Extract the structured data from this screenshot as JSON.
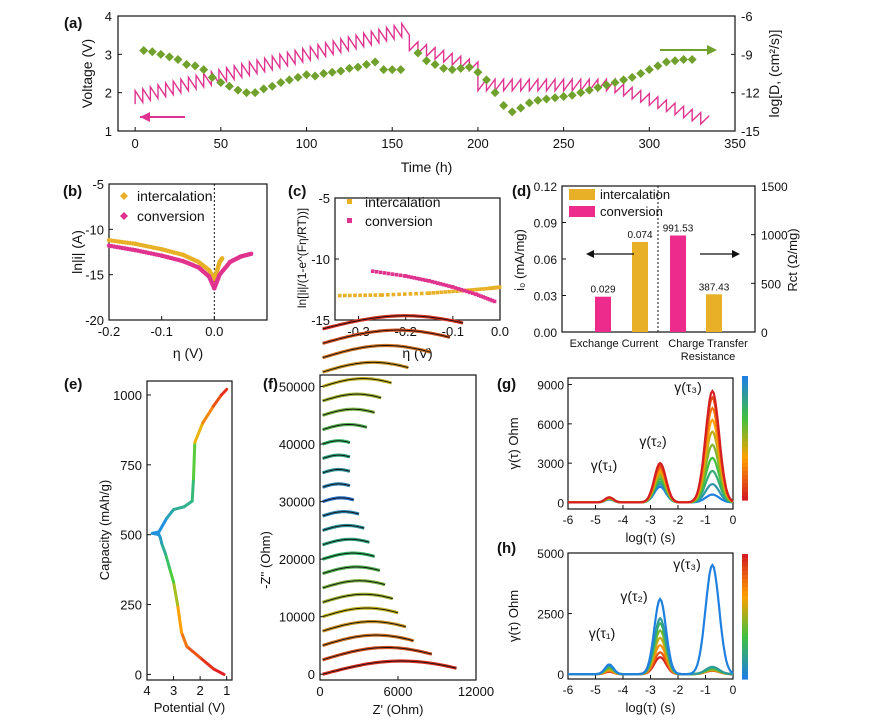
{
  "panel_labels": {
    "a": "(a)",
    "b": "(b)",
    "c": "(c)",
    "d": "(d)",
    "e": "(e)",
    "f": "(f)",
    "g": "(g)",
    "h": "(h)"
  },
  "colors": {
    "magenta": "#e0338f",
    "green": "#6fa12c",
    "gold": "#e7b026",
    "pink": "#ec2b8c"
  },
  "chart_data": [
    {
      "id": "a",
      "type": "line",
      "xlabel": "Time (h)",
      "ylabel": "Voltage (V)",
      "y2label": "log[D, (cm²/s)]",
      "xlim": [
        -10,
        350
      ],
      "ylim": [
        1,
        4
      ],
      "y2lim": [
        -15,
        -6
      ],
      "xticks": [
        0,
        50,
        100,
        150,
        200,
        250,
        300,
        350
      ],
      "yticks": [
        1,
        2,
        3,
        4
      ],
      "y2ticks": [
        -15,
        -12,
        -9,
        -6
      ],
      "series": [
        {
          "axis": "left",
          "color": "#e0338f",
          "description": "GITT voltage pulses",
          "segments": [
            {
              "x0": 0,
              "x1": 160,
              "y0": 1.7,
              "y1": 3.5,
              "pulse": 0.35,
              "n": 36
            },
            {
              "x0": 160,
              "x1": 200,
              "y0": 3.4,
              "y1": 2.8,
              "pulse": -0.3,
              "n": 8
            },
            {
              "x0": 200,
              "x1": 280,
              "y0": 2.35,
              "y1": 2.35,
              "pulse": -0.3,
              "n": 16
            },
            {
              "x0": 280,
              "x1": 335,
              "y0": 2.3,
              "y1": 1.4,
              "pulse": -0.3,
              "n": 11
            }
          ]
        },
        {
          "axis": "right",
          "color": "#6fa12c",
          "points": [
            [
              5,
              -8.7
            ],
            [
              10,
              -8.8
            ],
            [
              15,
              -9.0
            ],
            [
              20,
              -9.2
            ],
            [
              25,
              -9.4
            ],
            [
              30,
              -9.8
            ],
            [
              35,
              -9.9
            ],
            [
              40,
              -10.2
            ],
            [
              45,
              -10.8
            ],
            [
              50,
              -11.2
            ],
            [
              55,
              -11.5
            ],
            [
              60,
              -11.8
            ],
            [
              65,
              -12.0
            ],
            [
              70,
              -12.0
            ],
            [
              75,
              -11.7
            ],
            [
              80,
              -11.5
            ],
            [
              85,
              -11.2
            ],
            [
              90,
              -11.0
            ],
            [
              95,
              -10.8
            ],
            [
              100,
              -10.6
            ],
            [
              105,
              -10.7
            ],
            [
              110,
              -10.5
            ],
            [
              115,
              -10.4
            ],
            [
              120,
              -10.3
            ],
            [
              125,
              -10.1
            ],
            [
              130,
              -10.0
            ],
            [
              135,
              -9.8
            ],
            [
              140,
              -9.6
            ],
            [
              145,
              -10.2
            ],
            [
              150,
              -10.2
            ],
            [
              155,
              -10.2
            ],
            [
              165,
              -8.9
            ],
            [
              170,
              -9.5
            ],
            [
              175,
              -9.8
            ],
            [
              180,
              -10.1
            ],
            [
              185,
              -10.2
            ],
            [
              190,
              -10.1
            ],
            [
              195,
              -10.0
            ],
            [
              200,
              -10.4
            ],
            [
              205,
              -11.0
            ],
            [
              210,
              -12.0
            ],
            [
              215,
              -13.0
            ],
            [
              220,
              -13.5
            ],
            [
              225,
              -13.2
            ],
            [
              230,
              -12.8
            ],
            [
              235,
              -12.6
            ],
            [
              240,
              -12.5
            ],
            [
              245,
              -12.4
            ],
            [
              250,
              -12.3
            ],
            [
              255,
              -12.2
            ],
            [
              260,
              -12.0
            ],
            [
              265,
              -11.8
            ],
            [
              270,
              -11.6
            ],
            [
              275,
              -11.4
            ],
            [
              280,
              -11.2
            ],
            [
              285,
              -11.0
            ],
            [
              290,
              -10.8
            ],
            [
              295,
              -10.5
            ],
            [
              300,
              -10.2
            ],
            [
              305,
              -9.9
            ],
            [
              310,
              -9.6
            ],
            [
              315,
              -9.5
            ],
            [
              320,
              -9.4
            ],
            [
              325,
              -9.4
            ]
          ]
        }
      ]
    },
    {
      "id": "b",
      "type": "scatter",
      "xlabel": "η (V)",
      "ylabel": "ln|i| (A)",
      "xlim": [
        -0.2,
        0.1
      ],
      "ylim": [
        -20,
        -5
      ],
      "xticks": [
        -0.2,
        -0.1,
        0.0
      ],
      "yticks": [
        -20,
        -15,
        -10,
        -5
      ],
      "series": [
        {
          "name": "intercalation",
          "color": "#e7b026",
          "points": [
            [
              -0.2,
              -11.2
            ],
            [
              -0.15,
              -11.6
            ],
            [
              -0.1,
              -12.2
            ],
            [
              -0.06,
              -12.8
            ],
            [
              -0.03,
              -13.6
            ],
            [
              -0.01,
              -14.5
            ],
            [
              0,
              -15.5
            ],
            [
              0.005,
              -14.6
            ],
            [
              0.01,
              -13.6
            ],
            [
              0.015,
              -13.2
            ]
          ]
        },
        {
          "name": "conversion",
          "color": "#e0338f",
          "points": [
            [
              -0.2,
              -11.8
            ],
            [
              -0.15,
              -12.3
            ],
            [
              -0.1,
              -12.9
            ],
            [
              -0.06,
              -13.5
            ],
            [
              -0.03,
              -14.2
            ],
            [
              -0.01,
              -15.2
            ],
            [
              0,
              -16.5
            ],
            [
              0.01,
              -15.0
            ],
            [
              0.03,
              -13.6
            ],
            [
              0.05,
              -13.0
            ],
            [
              0.07,
              -12.7
            ]
          ]
        }
      ]
    },
    {
      "id": "c",
      "type": "scatter",
      "xlabel": "η (V)",
      "ylabel": "ln[|i|/(1-e^(Fη/RT))]",
      "xlim": [
        -0.35,
        0.0
      ],
      "ylim": [
        -15,
        -5
      ],
      "xticks": [
        -0.3,
        -0.2,
        -0.1,
        0.0
      ],
      "yticks": [
        -15,
        -10,
        -5
      ],
      "series": [
        {
          "name": "intercalation",
          "color": "#e7b026",
          "points": [
            [
              -0.34,
              -13.0
            ],
            [
              -0.25,
              -12.95
            ],
            [
              -0.15,
              -12.8
            ],
            [
              -0.08,
              -12.6
            ],
            [
              -0.02,
              -12.4
            ],
            [
              0.0,
              -12.3
            ]
          ]
        },
        {
          "name": "conversion",
          "color": "#e0338f",
          "points": [
            [
              -0.27,
              -11.0
            ],
            [
              -0.2,
              -11.4
            ],
            [
              -0.15,
              -11.8
            ],
            [
              -0.1,
              -12.3
            ],
            [
              -0.05,
              -12.9
            ],
            [
              -0.01,
              -13.5
            ]
          ]
        }
      ]
    },
    {
      "id": "d",
      "type": "bar",
      "ylabel": "i₀ (mA/mg)",
      "y2label": "Rct (Ω/mg)",
      "ylim": [
        0,
        0.12
      ],
      "y2lim": [
        0,
        1500
      ],
      "yticks": [
        0,
        0.03,
        0.06,
        0.09,
        0.12
      ],
      "y2ticks": [
        0,
        500,
        1000,
        1500
      ],
      "categories": [
        "Exchange Current",
        "Charge Transfer Resistance"
      ],
      "series": [
        {
          "name": "intercalation",
          "color": "#e7b026"
        },
        {
          "name": "conversion",
          "color": "#ec2b8c"
        }
      ],
      "bars": [
        {
          "group": 0,
          "series": "conversion",
          "axis": "left",
          "value": 0.029,
          "label": "0.029"
        },
        {
          "group": 0,
          "series": "intercalation",
          "axis": "left",
          "value": 0.074,
          "label": "0.074"
        },
        {
          "group": 1,
          "series": "conversion",
          "axis": "right",
          "value": 991.53,
          "label": "991.53"
        },
        {
          "group": 1,
          "series": "intercalation",
          "axis": "right",
          "value": 387.43,
          "label": "387.43"
        }
      ]
    },
    {
      "id": "e",
      "type": "line",
      "xlabel": "Potential (V)",
      "ylabel": "Capacity (mAh/g)",
      "xlim": [
        4.0,
        0.8
      ],
      "ylim": [
        -20,
        1050
      ],
      "xticks": [
        4,
        3,
        2,
        1
      ],
      "yticks": [
        0,
        250,
        500,
        750,
        1000
      ],
      "points": [
        [
          1.1,
          0
        ],
        [
          1.5,
          20
        ],
        [
          2.0,
          60
        ],
        [
          2.5,
          100
        ],
        [
          2.7,
          150
        ],
        [
          2.85,
          250
        ],
        [
          3.0,
          330
        ],
        [
          3.15,
          380
        ],
        [
          3.3,
          430
        ],
        [
          3.45,
          470
        ],
        [
          3.5,
          490
        ],
        [
          3.55,
          500
        ],
        [
          3.8,
          505
        ],
        [
          3.55,
          510
        ],
        [
          3.25,
          560
        ],
        [
          3.0,
          590
        ],
        [
          2.6,
          600
        ],
        [
          2.3,
          620
        ],
        [
          2.25,
          700
        ],
        [
          2.2,
          830
        ],
        [
          1.9,
          900
        ],
        [
          1.5,
          960
        ],
        [
          1.2,
          1000
        ],
        [
          1.0,
          1020
        ]
      ],
      "colorscale": [
        "#e02020",
        "#ffb000",
        "#40d040",
        "#2090e0"
      ]
    },
    {
      "id": "f",
      "type": "line",
      "xlabel": "Z' (Ohm)",
      "ylabel": "-Z'' (Ohm)",
      "xlim": [
        0,
        12000
      ],
      "ylim": [
        -1000,
        52000
      ],
      "xticks": [
        0,
        6000,
        12000
      ],
      "yticks": [
        0,
        10000,
        20000,
        30000,
        40000,
        50000
      ],
      "offset_step": 2500,
      "zmax_per_curve": [
        10500,
        8600,
        7200,
        6600,
        6000,
        5600,
        5000,
        4600,
        4200,
        3800,
        3400,
        3000,
        2600,
        2300,
        2300,
        2300,
        2300,
        3600,
        4200,
        4700,
        5500,
        6800,
        8500,
        10000,
        11000
      ]
    },
    {
      "id": "g",
      "type": "line",
      "xlabel": "log(τ) (s)",
      "ylabel": "γ(τ) Ohm",
      "xlim": [
        -6,
        0
      ],
      "ylim": [
        -500,
        9500
      ],
      "xticks": [
        -6,
        -5,
        -4,
        -3,
        -2,
        -1,
        0
      ],
      "yticks": [
        0,
        3000,
        6000,
        9000
      ],
      "annotations": [
        "γ(τ₁)",
        "γ(τ₂)",
        "γ(τ₃)"
      ],
      "peaks_tau3": [
        8500,
        8000,
        7200,
        6300,
        5400,
        4400,
        3400,
        2400,
        1400,
        600
      ],
      "peaks_tau2": [
        3000,
        2800,
        2600,
        2400,
        2200,
        2000,
        1800,
        1600,
        1400,
        1200
      ],
      "peaks_tau1": [
        400,
        380,
        360,
        340,
        320,
        300,
        280,
        260,
        240,
        220
      ],
      "colorscale": [
        "#d42020",
        "#ffa000",
        "#40c040",
        "#2080e0"
      ]
    },
    {
      "id": "h",
      "type": "line",
      "xlabel": "log(τ) (s)",
      "ylabel": "γ(τ) Ohm",
      "xlim": [
        -6,
        0
      ],
      "ylim": [
        -200,
        5000
      ],
      "xticks": [
        -6,
        -5,
        -4,
        -3,
        -2,
        -1,
        0
      ],
      "yticks": [
        0,
        2500,
        5000
      ],
      "annotations": [
        "γ(τ₁)",
        "γ(τ₂)",
        "γ(τ₃)"
      ],
      "peaks_tau3": [
        4500,
        300,
        250,
        200,
        180,
        160,
        150,
        140
      ],
      "peaks_tau2": [
        3100,
        2300,
        2100,
        1800,
        1500,
        1200,
        900,
        700
      ],
      "peaks_tau1": [
        400,
        350,
        300,
        250,
        200,
        150,
        120,
        100
      ],
      "colorscale": [
        "#2080e0",
        "#40c040",
        "#ffa000",
        "#d42020"
      ]
    }
  ]
}
